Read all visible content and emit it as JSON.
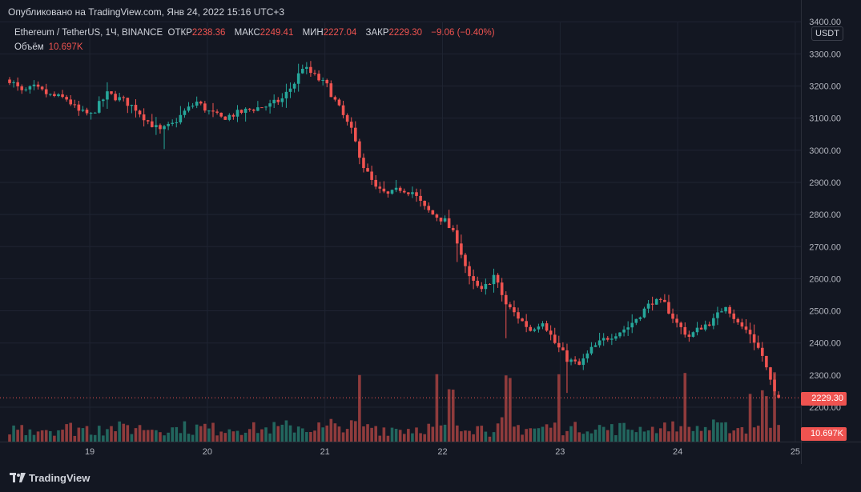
{
  "header": {
    "published": "Опубликовано на TradingView.com, Янв 24, 2022 15:16 UTC+3"
  },
  "legend": {
    "symbol": "Ethereum / TetherUS, 1Ч, BINANCE",
    "open_label": "ОТКР",
    "open_value": "2238.36",
    "high_label": "МАКС",
    "high_value": "2249.41",
    "low_label": "МИН",
    "low_value": "2227.04",
    "close_label": "ЗАКР",
    "close_value": "2229.30",
    "change": "−9.06 (−0.40%)",
    "volume_label": "Объём",
    "volume_value": "10.697K"
  },
  "price_scale": {
    "unit": "USDT"
  },
  "tags": {
    "last_price": "2229.30",
    "last_volume": "10.697K"
  },
  "footer": {
    "brand": "TradingView"
  },
  "colors": {
    "up": "#26a69a",
    "down": "#ef5350",
    "up_vol": "#22665e",
    "down_vol": "#8f3b3c",
    "bg": "#131722",
    "grid": "#1f2432",
    "axis_text": "#b2b5be"
  },
  "chart_data": {
    "type": "candlestick",
    "title": "Ethereum / TetherUS, 1Ч, BINANCE",
    "ylim": [
      2140,
      3400
    ],
    "y_ticks": [
      2200,
      2300,
      2400,
      2500,
      2600,
      2700,
      2800,
      2900,
      3000,
      3100,
      3200,
      3300,
      3400
    ],
    "y_tick_labels": [
      "2200.00",
      "2300.00",
      "2400.00",
      "2500.00",
      "2600.00",
      "2700.00",
      "2800.00",
      "2900.00",
      "3000.00",
      "3100.00",
      "3200.00",
      "3300.00",
      "3400.00"
    ],
    "x_tick_labels": [
      "19",
      "20",
      "21",
      "22",
      "23",
      "24",
      "25"
    ],
    "x_tick_positions_bars": [
      19.7,
      48.6,
      77.5,
      106.4,
      135.3,
      164.2,
      193.1
    ],
    "bars_count": 190,
    "anchors": [
      [
        0,
        3220
      ],
      [
        3,
        3180
      ],
      [
        6,
        3195
      ],
      [
        10,
        3170
      ],
      [
        14,
        3160
      ],
      [
        17,
        3120
      ],
      [
        20,
        3110
      ],
      [
        24,
        3175
      ],
      [
        28,
        3155
      ],
      [
        31,
        3130
      ],
      [
        34,
        3090
      ],
      [
        37,
        3060
      ],
      [
        40,
        3080
      ],
      [
        43,
        3120
      ],
      [
        46,
        3150
      ],
      [
        49,
        3120
      ],
      [
        52,
        3100
      ],
      [
        56,
        3115
      ],
      [
        60,
        3130
      ],
      [
        64,
        3140
      ],
      [
        67,
        3160
      ],
      [
        70,
        3210
      ],
      [
        72,
        3260
      ],
      [
        75,
        3230
      ],
      [
        78,
        3200
      ],
      [
        81,
        3130
      ],
      [
        84,
        3060
      ],
      [
        87,
        2950
      ],
      [
        90,
        2880
      ],
      [
        93,
        2860
      ],
      [
        96,
        2880
      ],
      [
        99,
        2870
      ],
      [
        102,
        2820
      ],
      [
        104,
        2800
      ],
      [
        107,
        2780
      ],
      [
        110,
        2720
      ],
      [
        113,
        2600
      ],
      [
        116,
        2560
      ],
      [
        119,
        2610
      ],
      [
        122,
        2520
      ],
      [
        125,
        2480
      ],
      [
        128,
        2440
      ],
      [
        131,
        2470
      ],
      [
        134,
        2400
      ],
      [
        137,
        2350
      ],
      [
        140,
        2330
      ],
      [
        143,
        2380
      ],
      [
        146,
        2410
      ],
      [
        149,
        2430
      ],
      [
        152,
        2450
      ],
      [
        155,
        2490
      ],
      [
        158,
        2530
      ],
      [
        161,
        2520
      ],
      [
        164,
        2460
      ],
      [
        167,
        2420
      ],
      [
        170,
        2450
      ],
      [
        173,
        2470
      ],
      [
        176,
        2520
      ],
      [
        179,
        2460
      ],
      [
        182,
        2430
      ],
      [
        185,
        2360
      ],
      [
        188,
        2240
      ],
      [
        189,
        2229
      ]
    ],
    "last": {
      "open": 2238.36,
      "high": 2249.41,
      "low": 2227.04,
      "close": 2229.3,
      "volume": "10.697K"
    }
  }
}
